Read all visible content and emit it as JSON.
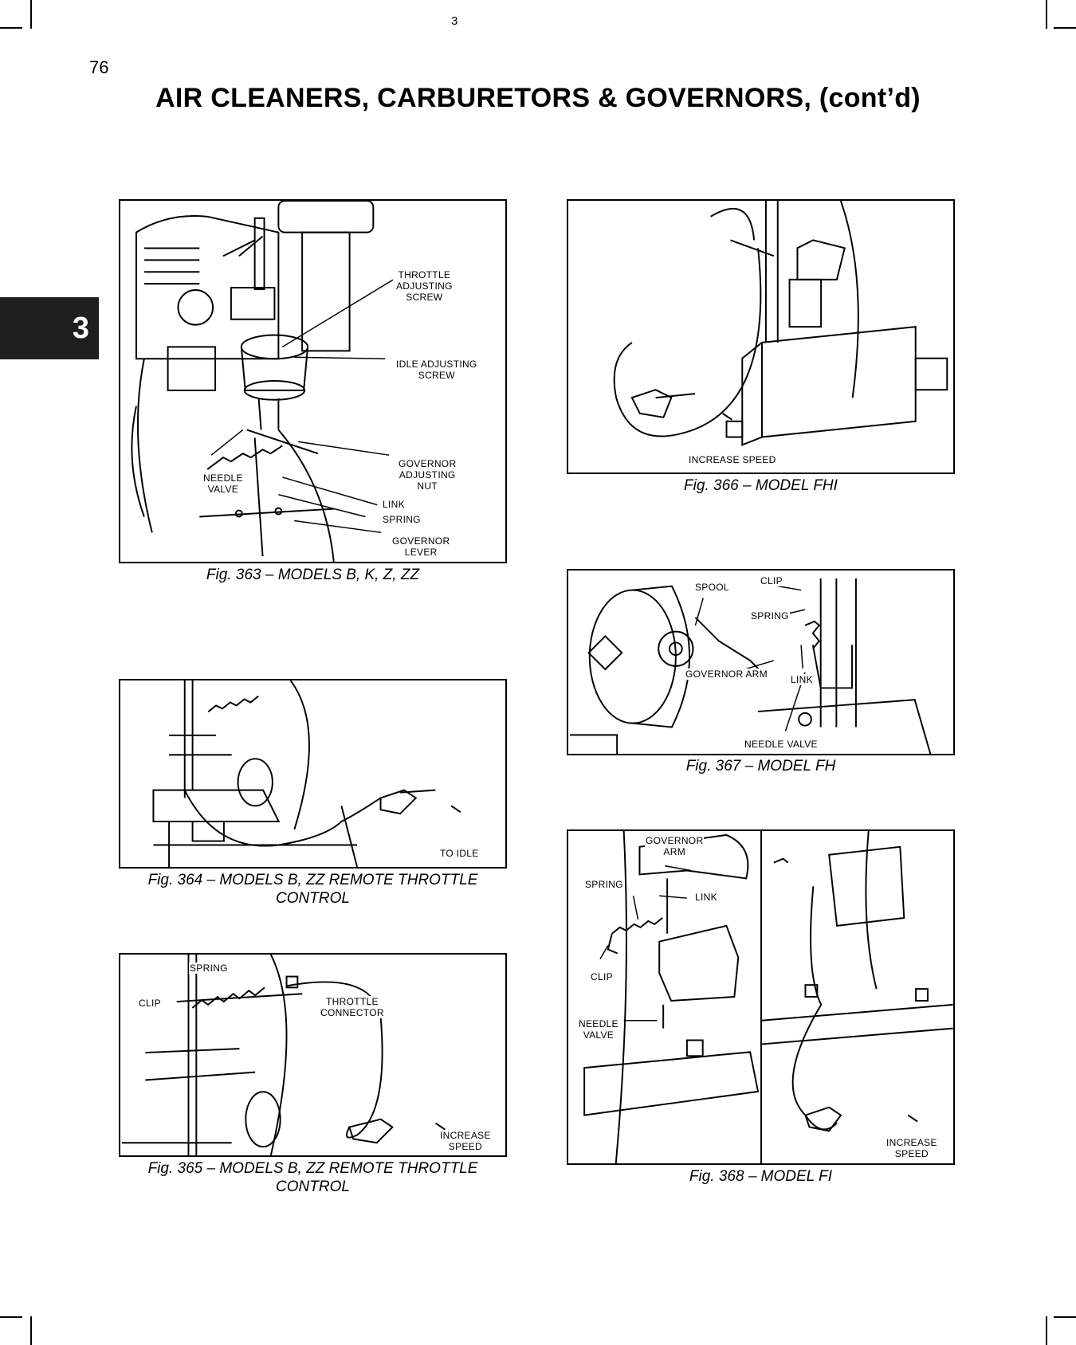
{
  "header": {
    "top_number": "3",
    "page_number": "76"
  },
  "title": "AIR CLEANERS, CARBURETORS & GOVERNORS, (cont’d)",
  "section_tab": "3",
  "figures": {
    "fig363": {
      "caption": "Fig. 363 – MODELS B, K, Z, ZZ",
      "labels": {
        "throttle_adjusting_screw": "THROTTLE\nADJUSTING\nSCREW",
        "idle_adjusting_screw": "IDLE ADJUSTING\nSCREW",
        "governor_adjusting_nut": "GOVERNOR\nADJUSTING\nNUT",
        "needle_valve": "NEEDLE\nVALVE",
        "link": "LINK",
        "spring": "SPRING",
        "governor_lever": "GOVERNOR\nLEVER"
      }
    },
    "fig364": {
      "caption": "Fig. 364 – MODELS B, ZZ REMOTE THROTTLE\nCONTROL",
      "labels": {
        "to_idle": "TO IDLE"
      }
    },
    "fig365": {
      "caption": "Fig. 365 – MODELS B, ZZ REMOTE THROTTLE\nCONTROL",
      "labels": {
        "spring": "SPRING",
        "clip": "CLIP",
        "throttle_connector": "THROTTLE\nCONNECTOR",
        "increase_speed": "INCREASE\nSPEED"
      }
    },
    "fig366": {
      "caption": "Fig. 366 – MODEL FHI",
      "labels": {
        "increase_speed": "INCREASE SPEED"
      }
    },
    "fig367": {
      "caption": "Fig. 367 – MODEL FH",
      "labels": {
        "spool": "SPOOL",
        "clip": "CLIP",
        "spring": "SPRING",
        "governor_arm": "GOVERNOR ARM",
        "link": "LINK",
        "needle_valve": "NEEDLE VALVE"
      }
    },
    "fig368": {
      "caption": "Fig. 368 – MODEL FI",
      "labels": {
        "governor_arm": "GOVERNOR\nARM",
        "spring": "SPRING",
        "link": "LINK",
        "clip": "CLIP",
        "needle_valve": "NEEDLE\nVALVE",
        "increase_speed": "INCREASE\nSPEED"
      }
    }
  }
}
